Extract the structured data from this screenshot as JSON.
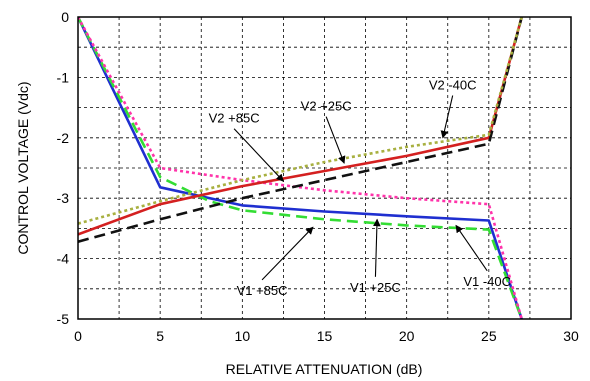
{
  "chart_data": {
    "type": "line",
    "xlabel": "RELATIVE ATTENUATION (dB)",
    "ylabel": "CONTROL VOLTAGE (Vdc)",
    "xlim": [
      0,
      30
    ],
    "ylim": [
      -5,
      0
    ],
    "xticks": [
      "0",
      "5",
      "10",
      "15",
      "20",
      "25",
      "30"
    ],
    "yticks": [
      "0",
      "-1",
      "-2",
      "-3",
      "-4",
      "-5"
    ],
    "grid": true,
    "series": [
      {
        "name": "V1 +85C",
        "color": "#1f2fd0",
        "style": "solid",
        "points": [
          [
            0,
            0
          ],
          [
            5,
            -2.82
          ],
          [
            10,
            -3.12
          ],
          [
            15,
            -3.22
          ],
          [
            20,
            -3.3
          ],
          [
            25,
            -3.37
          ],
          [
            27,
            -5
          ]
        ]
      },
      {
        "name": "V1 +25C",
        "color": "#33dd33",
        "style": "dashed",
        "points": [
          [
            0,
            0
          ],
          [
            5,
            -2.65
          ],
          [
            8,
            -3.05
          ],
          [
            10,
            -3.2
          ],
          [
            15,
            -3.35
          ],
          [
            20,
            -3.45
          ],
          [
            25,
            -3.52
          ],
          [
            27,
            -5
          ]
        ]
      },
      {
        "name": "V1 -40C",
        "color": "#ff33aa",
        "style": "dotted",
        "points": [
          [
            0,
            0
          ],
          [
            5,
            -2.5
          ],
          [
            10,
            -2.7
          ],
          [
            15,
            -2.87
          ],
          [
            20,
            -3.0
          ],
          [
            25,
            -3.1
          ],
          [
            27,
            -5
          ]
        ]
      },
      {
        "name": "V2 +85C",
        "color": "#d42020",
        "style": "solid",
        "points": [
          [
            0,
            -3.6
          ],
          [
            5,
            -3.1
          ],
          [
            10,
            -2.8
          ],
          [
            15,
            -2.55
          ],
          [
            20,
            -2.3
          ],
          [
            25,
            -2.0
          ],
          [
            27,
            0
          ]
        ]
      },
      {
        "name": "V2 +25C",
        "color": "#111111",
        "style": "dashed",
        "points": [
          [
            0,
            -3.72
          ],
          [
            5,
            -3.35
          ],
          [
            10,
            -3.0
          ],
          [
            15,
            -2.7
          ],
          [
            20,
            -2.4
          ],
          [
            25,
            -2.1
          ],
          [
            27,
            0
          ]
        ]
      },
      {
        "name": "V2 -40C",
        "color": "#a8b040",
        "style": "dotted",
        "points": [
          [
            0,
            -3.42
          ],
          [
            5,
            -3.05
          ],
          [
            10,
            -2.7
          ],
          [
            15,
            -2.4
          ],
          [
            20,
            -2.15
          ],
          [
            25,
            -1.95
          ],
          [
            27,
            0
          ]
        ]
      }
    ],
    "annotations": [
      {
        "text": "V2 -40C",
        "series": "V2 -40C",
        "label": [
          22.8,
          -1.2
        ],
        "arrow_tip": [
          22.2,
          -2.0
        ]
      },
      {
        "text": "V2 +25C",
        "series": "V2 +25C",
        "label": [
          15.1,
          -1.55
        ],
        "arrow_tip": [
          16.2,
          -2.42
        ]
      },
      {
        "text": "V2 +85C",
        "series": "V2 +85C",
        "label": [
          9.5,
          -1.75
        ],
        "arrow_tip": [
          12.5,
          -2.72
        ]
      },
      {
        "text": "V1 +85C",
        "series": "V1 +85C",
        "label": [
          11.2,
          -4.6
        ],
        "arrow_tip": [
          14.3,
          -3.48
        ]
      },
      {
        "text": "V1 +25C",
        "series": "V1 +25C",
        "label": [
          18.1,
          -4.55
        ],
        "arrow_tip": [
          18.2,
          -3.35
        ]
      },
      {
        "text": "V1 -40C",
        "series": "V1 -40C",
        "label": [
          24.9,
          -4.45
        ],
        "arrow_tip": [
          23.0,
          -3.45
        ]
      }
    ]
  }
}
